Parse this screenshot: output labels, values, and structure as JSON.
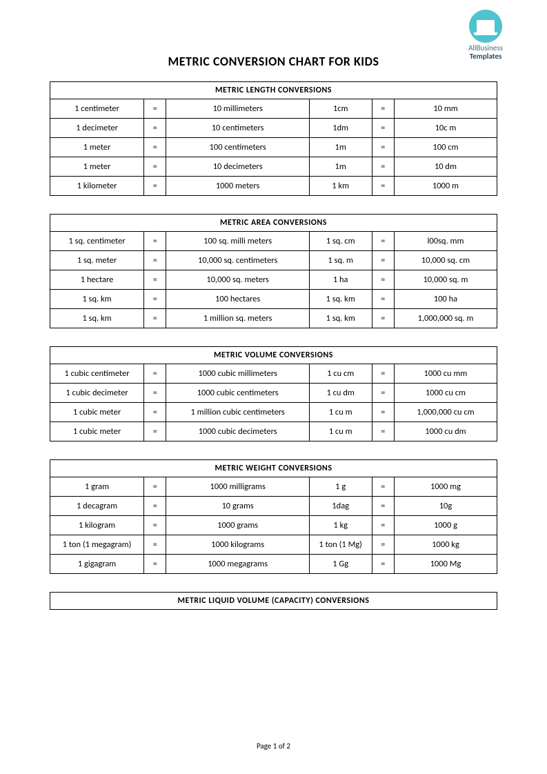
{
  "logo": {
    "line1": "AllBusiness",
    "line2": "Templates",
    "circle_color": "#4fc3cf"
  },
  "title": "METRIC CONVERSION CHART FOR KIDS",
  "equals": "=",
  "footer": "Page 1 of 2",
  "sections": [
    {
      "header": "METRIC  LENGTH  CONVERSIONS",
      "rows": [
        {
          "a": "1 centimeter",
          "b": "10 millimeters",
          "c": "1cm",
          "d": "10 mm"
        },
        {
          "a": "1 decimeter",
          "b": "10 centimeters",
          "c": "1dm",
          "d": "10c m"
        },
        {
          "a": "1 meter",
          "b": "100 centimeters",
          "c": "1m",
          "d": "100 cm"
        },
        {
          "a": "1 meter",
          "b": "10 decimeters",
          "c": "1m",
          "d": "10 dm"
        },
        {
          "a": "1 kilometer",
          "b": "1000 meters",
          "c": "1 km",
          "d": "1000 m"
        }
      ]
    },
    {
      "header": "METRIC  AREA CONVERSIONS",
      "rows": [
        {
          "a": "1 sq. centimeter",
          "b": "100 sq. milli meters",
          "c": "1 sq. cm",
          "d": "l00sq. mm"
        },
        {
          "a": "1 sq. meter",
          "b": "10,000 sq. centimeters",
          "c": "1 sq. m",
          "d": "10,000 sq. cm"
        },
        {
          "a": "1 hectare",
          "b": "10,000 sq. meters",
          "c": "1 ha",
          "d": "10,000 sq. m"
        },
        {
          "a": "1 sq. km",
          "b": "100 hectares",
          "c": "1 sq. km",
          "d": "100 ha"
        },
        {
          "a": "1 sq. km",
          "b": "1 million sq. meters",
          "c": "1 sq. km",
          "d": "1,000,000 sq. m"
        }
      ]
    },
    {
      "header": "METRIC VOLUME CONVERSIONS",
      "rows": [
        {
          "a": "1 cubic centimeter",
          "b": "1000 cubic millimeters",
          "c": "1 cu cm",
          "d": "1000 cu mm"
        },
        {
          "a": "1 cubic decimeter",
          "b": "1000 cubic centimeters",
          "c": "1 cu dm",
          "d": "1000 cu cm"
        },
        {
          "a": "1 cubic meter",
          "b": "1 million cubic centimeters",
          "c": "1 cu m",
          "d": "1,000,000 cu cm"
        },
        {
          "a": "1 cubic meter",
          "b": "1000 cubic decimeters",
          "c": "1 cu m",
          "d": "1000 cu dm"
        }
      ]
    },
    {
      "header": "METRIC  WEIGHT  CONVERSIONS",
      "rows": [
        {
          "a": "1 gram",
          "b": "1000 milligrams",
          "c": "1 g",
          "d": "1000 mg"
        },
        {
          "a": "1 decagram",
          "b": "10 grams",
          "c": "1dag",
          "d": "10g"
        },
        {
          "a": "1 kilogram",
          "b": "1000 grams",
          "c": "1 kg",
          "d": "1000 g"
        },
        {
          "a": "1 ton (1 megagram)",
          "b": "1000 kilograms",
          "c": "1 ton (1 Mg)",
          "d": "1000 kg"
        },
        {
          "a": "1 gigagram",
          "b": "1000 megagrams",
          "c": "1 Gg",
          "d": "1000 Mg"
        }
      ]
    },
    {
      "header": "METRIC  LIQUID VOLUME (CAPACITY)  CONVERSIONS",
      "rows": []
    }
  ]
}
